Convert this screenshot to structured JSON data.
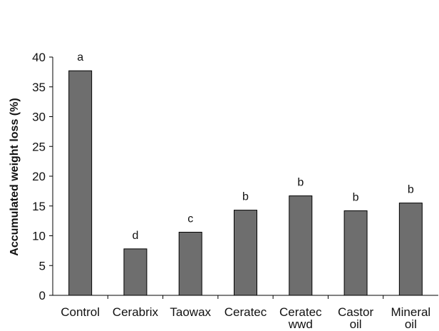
{
  "chart_data": {
    "type": "bar",
    "title": "",
    "xlabel": "",
    "ylabel": "Accumulated weight loss (%)",
    "ylim": [
      0,
      40
    ],
    "yticks": [
      0,
      5,
      10,
      15,
      20,
      25,
      30,
      35,
      40
    ],
    "grid": false,
    "legend": "none",
    "bar_color": "#6e6e6e",
    "bar_edge_color": "#000000",
    "categories": [
      [
        "Control"
      ],
      [
        "Cerabrix"
      ],
      [
        "Taowax"
      ],
      [
        "Ceratec"
      ],
      [
        "Ceratec",
        "wwd"
      ],
      [
        "Castor",
        "oil"
      ],
      [
        "Mineral",
        "oil"
      ]
    ],
    "values": [
      37.7,
      7.8,
      10.6,
      14.3,
      16.7,
      14.2,
      15.5
    ],
    "significance_letters": [
      "a",
      "d",
      "c",
      "b",
      "b",
      "b",
      "b"
    ]
  }
}
